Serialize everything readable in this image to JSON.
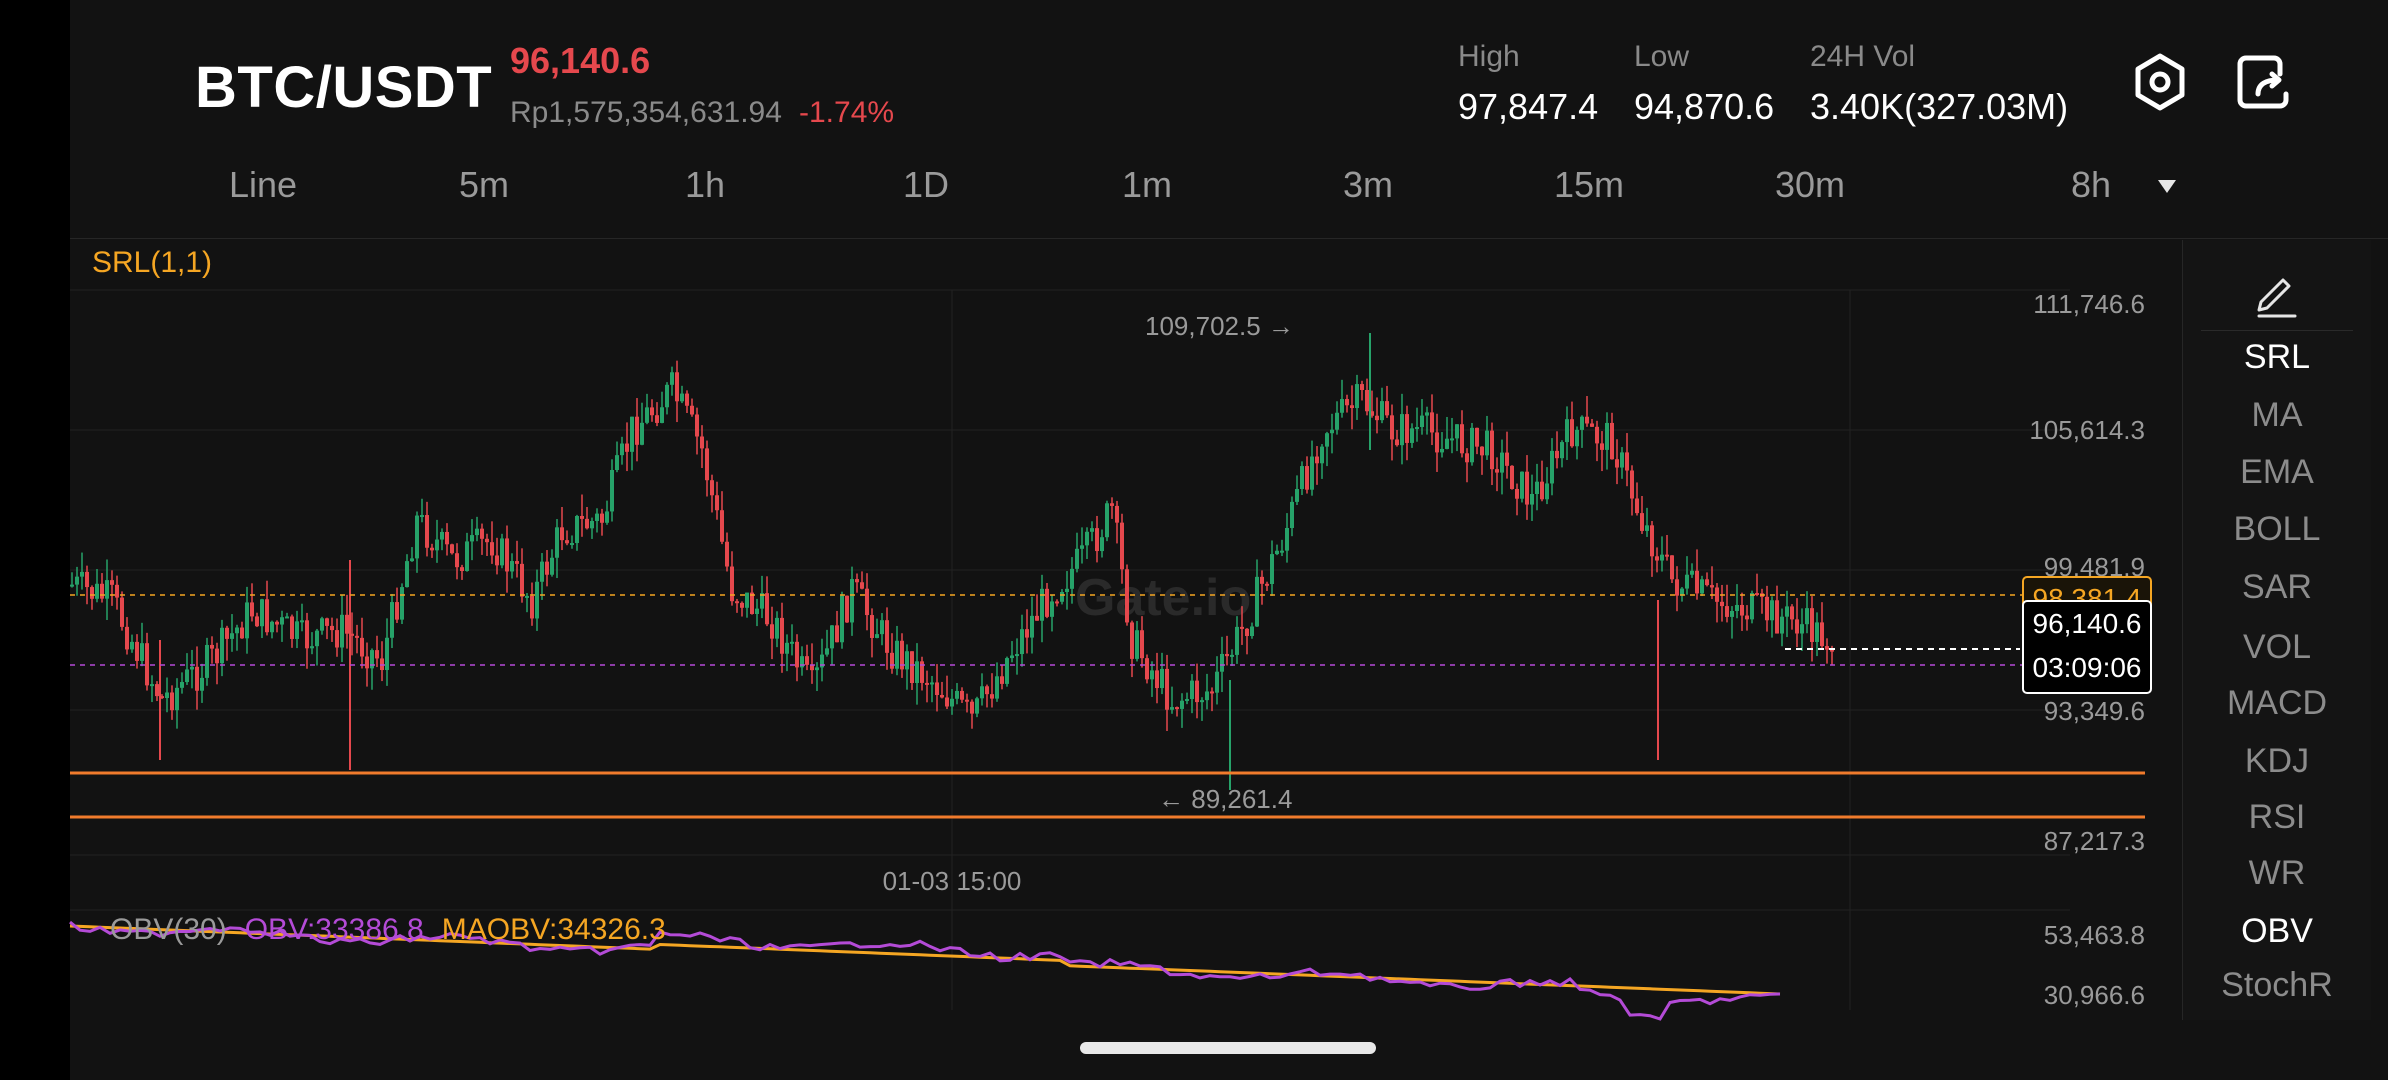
{
  "header": {
    "pair": "BTC/USDT",
    "last_price": "96,140.6",
    "fiat_price": "Rp1,575,354,631.94",
    "change_pct": "-1.74%",
    "high_label": "High",
    "high_value": "97,847.4",
    "low_label": "Low",
    "low_value": "94,870.6",
    "vol_label": "24H Vol",
    "vol_value": "3.40K(327.03M)",
    "icons": [
      "settings-hex-icon",
      "share-icon"
    ]
  },
  "timeframes": [
    "Line",
    "5m",
    "1h",
    "1D",
    "1m",
    "3m",
    "15m",
    "30m",
    "8h"
  ],
  "chart": {
    "indicator_label": "SRL(1,1)",
    "y_axis": [
      "111,746.6",
      "105,614.3",
      "99,481.9",
      "93,349.6",
      "87,217.3"
    ],
    "x_label": "01-03 15:00",
    "max_annotation": "109,702.5",
    "min_annotation": "89,261.4",
    "srl_value": "98,381.4",
    "last_price": "96,140.6",
    "countdown": "03:09:06",
    "watermark": "Gate.io",
    "colors": {
      "up": "#26a269",
      "down": "#e5484d",
      "srl": "#f5a623",
      "support": "#f07b2c",
      "obv": "#b44bd7",
      "maobv": "#f5a623"
    }
  },
  "obv": {
    "title": "OBV(30)",
    "obv_value": "OBV:33386.8",
    "maobv_value": "MAOBV:34326.3",
    "y_axis": [
      "53,463.8",
      "30,966.6"
    ]
  },
  "chart_data": {
    "type": "candlestick",
    "series": [
      {
        "name": "SRL",
        "values": [
          98381.4
        ]
      }
    ],
    "y_ticks": [
      111746.6,
      105614.3,
      99481.9,
      93349.6,
      87217.3
    ],
    "last": 96140.6,
    "annotated_high": 109702.5,
    "annotated_low": 89261.4
  },
  "indicators": [
    "SRL",
    "MA",
    "EMA",
    "BOLL",
    "SAR",
    "VOL",
    "MACD",
    "KDJ",
    "RSI",
    "WR",
    "OBV",
    "StochR"
  ],
  "active_indicators": [
    "SRL",
    "OBV"
  ]
}
